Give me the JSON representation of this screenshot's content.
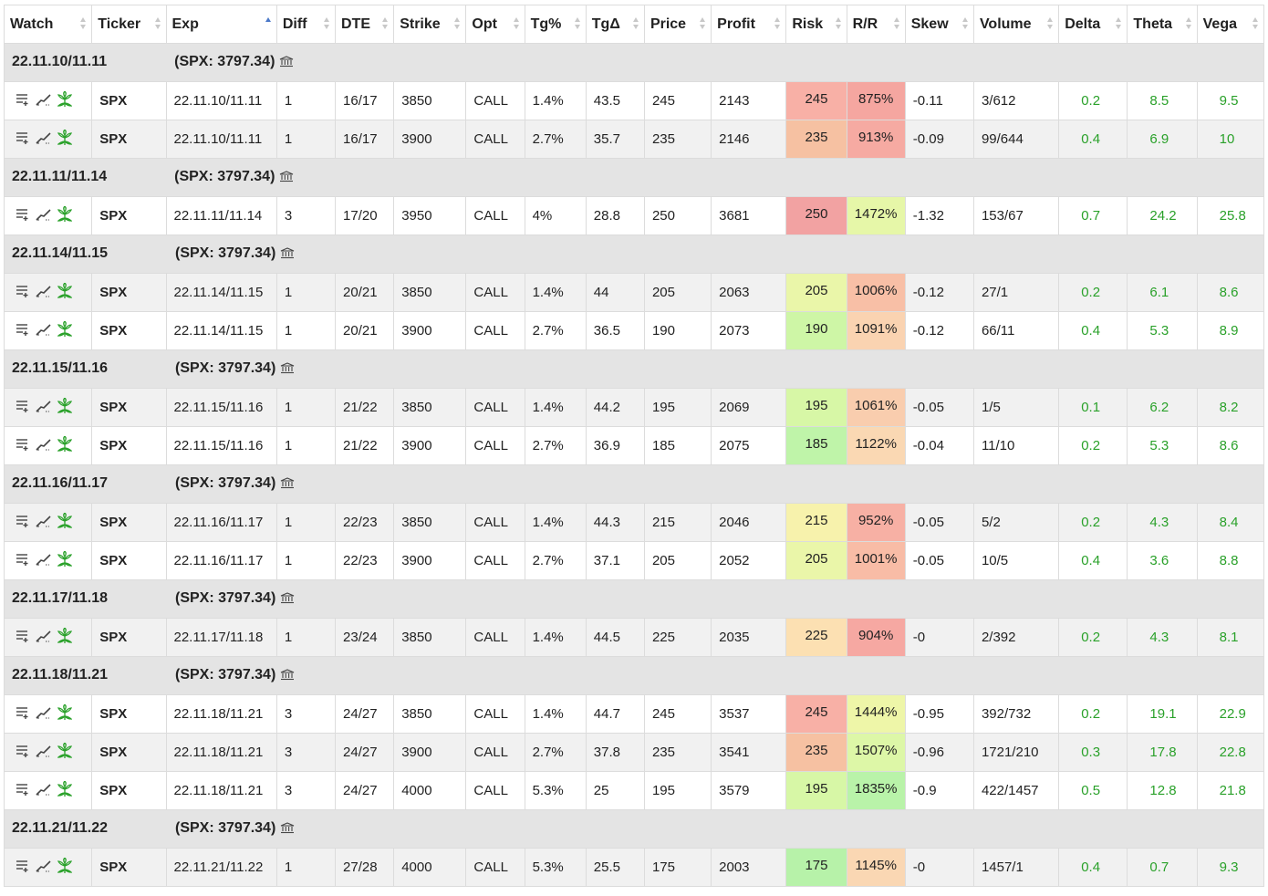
{
  "columns": [
    "Watch",
    "Ticker",
    "Exp",
    "Diff",
    "DTE",
    "Strike",
    "Opt",
    "Tg%",
    "TgΔ",
    "Price",
    "Profit",
    "Risk",
    "R/R",
    "Skew",
    "Volume",
    "Delta",
    "Theta",
    "Vega"
  ],
  "colors": {
    "group_bg": "#e4e4e4",
    "greek_text": "#2aa12a",
    "heat": {
      "red": "#f4a3a3",
      "salmon": "#f8b6a8",
      "orange": "#f6c7a3",
      "peach": "#fad5b5",
      "light_orange": "#fce3b4",
      "yellow": "#f6f6b0",
      "yellow_green": "#e8f8a8",
      "light_green": "#d4f7a5",
      "green": "#c5f5a8",
      "bright_green": "#bdf4a8"
    }
  },
  "groups": [
    {
      "label": "22.11.10/11.11",
      "spx": "(SPX: 3797.34)",
      "rows": [
        {
          "ticker": "SPX",
          "exp": "22.11.10/11.11",
          "diff": "1",
          "dte": "16/17",
          "strike": "3850",
          "opt": "CALL",
          "tg_pct": "1.4%",
          "tg_delta": "43.5",
          "price": "245",
          "profit": "2143",
          "risk": "245",
          "risk_color": "#f8b0a6",
          "rr": "875%",
          "rr_color": "#f5a6a0",
          "skew": "-0.11",
          "volume": "3/612",
          "delta": "0.2",
          "theta": "8.5",
          "vega": "9.5"
        },
        {
          "ticker": "SPX",
          "exp": "22.11.10/11.11",
          "diff": "1",
          "dte": "16/17",
          "strike": "3900",
          "opt": "CALL",
          "tg_pct": "2.7%",
          "tg_delta": "35.7",
          "price": "235",
          "profit": "2146",
          "risk": "235",
          "risk_color": "#f6c1a2",
          "rr": "913%",
          "rr_color": "#f6aaa2",
          "skew": "-0.09",
          "volume": "99/644",
          "delta": "0.4",
          "theta": "6.9",
          "vega": "10"
        }
      ]
    },
    {
      "label": "22.11.11/11.14",
      "spx": "(SPX: 3797.34)",
      "rows": [
        {
          "ticker": "SPX",
          "exp": "22.11.11/11.14",
          "diff": "3",
          "dte": "17/20",
          "strike": "3950",
          "opt": "CALL",
          "tg_pct": "4%",
          "tg_delta": "28.8",
          "price": "250",
          "profit": "3681",
          "risk": "250",
          "risk_color": "#f2a2a2",
          "rr": "1472%",
          "rr_color": "#e6f7a8",
          "skew": "-1.32",
          "volume": "153/67",
          "delta": "0.7",
          "theta": "24.2",
          "vega": "25.8"
        }
      ]
    },
    {
      "label": "22.11.14/11.15",
      "spx": "(SPX: 3797.34)",
      "rows": [
        {
          "ticker": "SPX",
          "exp": "22.11.14/11.15",
          "diff": "1",
          "dte": "20/21",
          "strike": "3850",
          "opt": "CALL",
          "tg_pct": "1.4%",
          "tg_delta": "44",
          "price": "205",
          "profit": "2063",
          "risk": "205",
          "risk_color": "#eaf6a9",
          "rr": "1006%",
          "rr_color": "#f8bfa6",
          "skew": "-0.12",
          "volume": "27/1",
          "delta": "0.2",
          "theta": "6.1",
          "vega": "8.6"
        },
        {
          "ticker": "SPX",
          "exp": "22.11.14/11.15",
          "diff": "1",
          "dte": "20/21",
          "strike": "3900",
          "opt": "CALL",
          "tg_pct": "2.7%",
          "tg_delta": "36.5",
          "price": "190",
          "profit": "2073",
          "risk": "190",
          "risk_color": "#cef6a6",
          "rr": "1091%",
          "rr_color": "#fad3b1",
          "skew": "-0.12",
          "volume": "66/11",
          "delta": "0.4",
          "theta": "5.3",
          "vega": "8.9"
        }
      ]
    },
    {
      "label": "22.11.15/11.16",
      "spx": "(SPX: 3797.34)",
      "rows": [
        {
          "ticker": "SPX",
          "exp": "22.11.15/11.16",
          "diff": "1",
          "dte": "21/22",
          "strike": "3850",
          "opt": "CALL",
          "tg_pct": "1.4%",
          "tg_delta": "44.2",
          "price": "195",
          "profit": "2069",
          "risk": "195",
          "risk_color": "#d7f7a6",
          "rr": "1061%",
          "rr_color": "#f9cdae",
          "skew": "-0.05",
          "volume": "1/5",
          "delta": "0.1",
          "theta": "6.2",
          "vega": "8.2"
        },
        {
          "ticker": "SPX",
          "exp": "22.11.15/11.16",
          "diff": "1",
          "dte": "21/22",
          "strike": "3900",
          "opt": "CALL",
          "tg_pct": "2.7%",
          "tg_delta": "36.9",
          "price": "185",
          "profit": "2075",
          "risk": "185",
          "risk_color": "#bff4a9",
          "rr": "1122%",
          "rr_color": "#fad8b3",
          "skew": "-0.04",
          "volume": "11/10",
          "delta": "0.2",
          "theta": "5.3",
          "vega": "8.6"
        }
      ]
    },
    {
      "label": "22.11.16/11.17",
      "spx": "(SPX: 3797.34)",
      "rows": [
        {
          "ticker": "SPX",
          "exp": "22.11.16/11.17",
          "diff": "1",
          "dte": "22/23",
          "strike": "3850",
          "opt": "CALL",
          "tg_pct": "1.4%",
          "tg_delta": "44.3",
          "price": "215",
          "profit": "2046",
          "risk": "215",
          "risk_color": "#f7f2ac",
          "rr": "952%",
          "rr_color": "#f7b0a4",
          "skew": "-0.05",
          "volume": "5/2",
          "delta": "0.2",
          "theta": "4.3",
          "vega": "8.4"
        },
        {
          "ticker": "SPX",
          "exp": "22.11.16/11.17",
          "diff": "1",
          "dte": "22/23",
          "strike": "3900",
          "opt": "CALL",
          "tg_pct": "2.7%",
          "tg_delta": "37.1",
          "price": "205",
          "profit": "2052",
          "risk": "205",
          "risk_color": "#eaf6a9",
          "rr": "1001%",
          "rr_color": "#f8bca6",
          "skew": "-0.05",
          "volume": "10/5",
          "delta": "0.4",
          "theta": "3.6",
          "vega": "8.8"
        }
      ]
    },
    {
      "label": "22.11.17/11.18",
      "spx": "(SPX: 3797.34)",
      "rows": [
        {
          "ticker": "SPX",
          "exp": "22.11.17/11.18",
          "diff": "1",
          "dte": "23/24",
          "strike": "3850",
          "opt": "CALL",
          "tg_pct": "1.4%",
          "tg_delta": "44.5",
          "price": "225",
          "profit": "2035",
          "risk": "225",
          "risk_color": "#fce0b2",
          "rr": "904%",
          "rr_color": "#f6a8a2",
          "skew": "-0",
          "volume": "2/392",
          "delta": "0.2",
          "theta": "4.3",
          "vega": "8.1"
        }
      ]
    },
    {
      "label": "22.11.18/11.21",
      "spx": "(SPX: 3797.34)",
      "rows": [
        {
          "ticker": "SPX",
          "exp": "22.11.18/11.21",
          "diff": "3",
          "dte": "24/27",
          "strike": "3850",
          "opt": "CALL",
          "tg_pct": "1.4%",
          "tg_delta": "44.7",
          "price": "245",
          "profit": "3537",
          "risk": "245",
          "risk_color": "#f8b0a6",
          "rr": "1444%",
          "rr_color": "#eef6a8",
          "skew": "-0.95",
          "volume": "392/732",
          "delta": "0.2",
          "theta": "19.1",
          "vega": "22.9"
        },
        {
          "ticker": "SPX",
          "exp": "22.11.18/11.21",
          "diff": "3",
          "dte": "24/27",
          "strike": "3900",
          "opt": "CALL",
          "tg_pct": "2.7%",
          "tg_delta": "37.8",
          "price": "235",
          "profit": "3541",
          "risk": "235",
          "risk_color": "#f6c1a2",
          "rr": "1507%",
          "rr_color": "#ddf7a7",
          "skew": "-0.96",
          "volume": "1721/210",
          "delta": "0.3",
          "theta": "17.8",
          "vega": "22.8"
        },
        {
          "ticker": "SPX",
          "exp": "22.11.18/11.21",
          "diff": "3",
          "dte": "24/27",
          "strike": "4000",
          "opt": "CALL",
          "tg_pct": "5.3%",
          "tg_delta": "25",
          "price": "195",
          "profit": "3579",
          "risk": "195",
          "risk_color": "#d7f7a6",
          "rr": "1835%",
          "rr_color": "#b9f3a9",
          "skew": "-0.9",
          "volume": "422/1457",
          "delta": "0.5",
          "theta": "12.8",
          "vega": "21.8"
        }
      ]
    },
    {
      "label": "22.11.21/11.22",
      "spx": "(SPX: 3797.34)",
      "rows": [
        {
          "ticker": "SPX",
          "exp": "22.11.21/11.22",
          "diff": "1",
          "dte": "27/28",
          "strike": "4000",
          "opt": "CALL",
          "tg_pct": "5.3%",
          "tg_delta": "25.5",
          "price": "175",
          "profit": "2003",
          "risk": "175",
          "risk_color": "#b7f2a9",
          "rr": "1145%",
          "rr_color": "#fad7b3",
          "skew": "-0",
          "volume": "1457/1",
          "delta": "0.4",
          "theta": "0.7",
          "vega": "9.3"
        }
      ]
    }
  ]
}
